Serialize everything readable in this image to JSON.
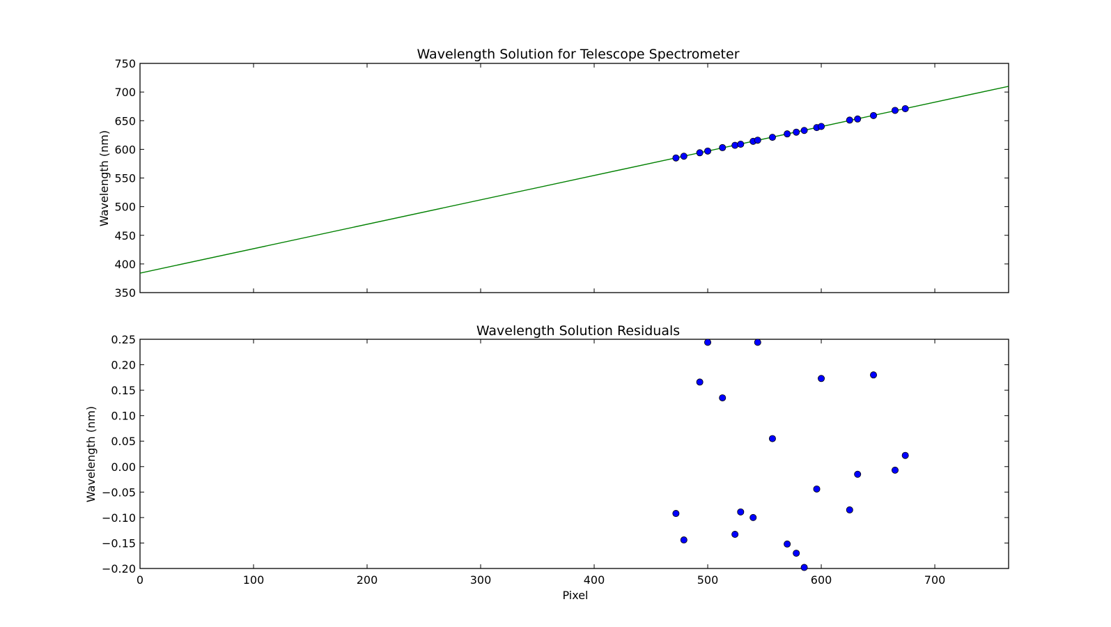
{
  "chart_data": [
    {
      "type": "scatter",
      "title": "Wavelength Solution for Telescope Spectrometer",
      "xlabel": "",
      "ylabel": "Wavelength (nm)",
      "xlim": [
        0,
        765
      ],
      "ylim": [
        350,
        750
      ],
      "xticks": [
        "0",
        "100",
        "200",
        "300",
        "400",
        "500",
        "600",
        "700"
      ],
      "yticks": [
        "350",
        "400",
        "450",
        "500",
        "550",
        "600",
        "650",
        "700",
        "750"
      ],
      "grid": false,
      "colors": {
        "points": "#0000ff",
        "fit_line": "#008000"
      },
      "fit_line": {
        "x": [
          0,
          765
        ],
        "y": [
          384,
          710
        ]
      },
      "series": [
        {
          "x": [
            472,
            479,
            493,
            500,
            513,
            524,
            529,
            540,
            544,
            557,
            570,
            578,
            585,
            596,
            600,
            625,
            632,
            646,
            665,
            674
          ],
          "y": [
            585,
            588,
            594,
            597,
            603,
            607,
            609,
            614,
            616,
            621,
            627,
            630,
            633,
            638,
            640,
            651,
            653,
            659,
            668,
            671
          ]
        }
      ]
    },
    {
      "type": "scatter",
      "title": "Wavelength Solution Residuals",
      "xlabel": "Pixel",
      "ylabel": "Wavelength (nm)",
      "xlim": [
        0,
        765
      ],
      "ylim": [
        -0.2,
        0.25
      ],
      "xticks": [
        "0",
        "100",
        "200",
        "300",
        "400",
        "500",
        "600",
        "700"
      ],
      "yticks": [
        "−0.20",
        "−0.15",
        "−0.10",
        "−0.05",
        "0.00",
        "0.05",
        "0.10",
        "0.15",
        "0.20",
        "0.25"
      ],
      "grid": false,
      "colors": {
        "points": "#0000ff"
      },
      "series": [
        {
          "x": [
            472,
            479,
            493,
            500,
            513,
            524,
            529,
            540,
            544,
            557,
            570,
            578,
            585,
            596,
            600,
            625,
            632,
            646,
            665,
            674
          ],
          "y": [
            -0.092,
            -0.144,
            0.166,
            0.244,
            0.135,
            -0.133,
            -0.089,
            -0.1,
            0.244,
            0.055,
            -0.152,
            -0.17,
            -0.198,
            -0.044,
            0.173,
            -0.085,
            -0.015,
            0.18,
            -0.007,
            0.022
          ]
        }
      ]
    }
  ]
}
